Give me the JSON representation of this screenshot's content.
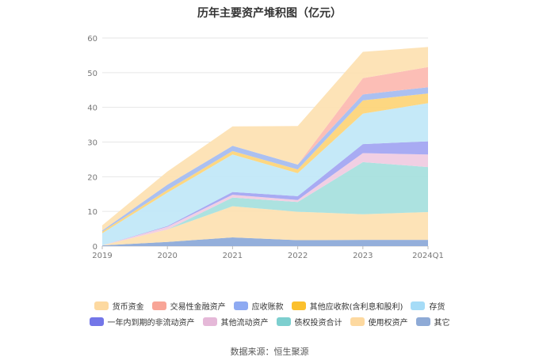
{
  "title": "历年主要资产堆积图（亿元）",
  "source": "数据来源：恒生聚源",
  "chart_data": {
    "type": "area",
    "stacked": true,
    "categories": [
      "2019",
      "2020",
      "2021",
      "2022",
      "2023",
      "2024Q1"
    ],
    "ylim": [
      0,
      60
    ],
    "yticks": [
      0,
      10,
      20,
      30,
      40,
      50,
      60
    ],
    "grid": true,
    "legend_position": "bottom",
    "series": [
      {
        "name": "其它",
        "color": "#8eabd9",
        "values": [
          0.2,
          1.2,
          2.5,
          1.7,
          1.8,
          1.8
        ]
      },
      {
        "name": "使用权资产",
        "color": "#fde2b3",
        "values": [
          0.0,
          3.6,
          9.0,
          8.2,
          7.4,
          8.0
        ]
      },
      {
        "name": "债权投资合计",
        "color": "#a8e0de",
        "values": [
          0.0,
          0.0,
          2.5,
          2.8,
          15.0,
          13.0
        ]
      },
      {
        "name": "其他流动资产",
        "color": "#f0cce2",
        "values": [
          0.0,
          0.8,
          0.8,
          0.6,
          2.6,
          3.6
        ]
      },
      {
        "name": "一年内到期的非流动资产",
        "color": "#a3a6f2",
        "values": [
          0.0,
          0.2,
          0.8,
          1.1,
          2.6,
          3.8
        ]
      },
      {
        "name": "存货",
        "color": "#c2e8f8",
        "values": [
          3.5,
          9.6,
          10.8,
          6.6,
          8.8,
          11.0
        ]
      },
      {
        "name": "其他应收款(含利息和股利)",
        "color": "#fdd57a",
        "values": [
          0.5,
          0.8,
          1.0,
          1.1,
          3.8,
          2.8
        ]
      },
      {
        "name": "应收账款",
        "color": "#a6bdf0",
        "values": [
          0.3,
          1.5,
          1.5,
          1.4,
          1.7,
          1.8
        ]
      },
      {
        "name": "交易性金融资产",
        "color": "#fcbab2",
        "values": [
          0.0,
          0.0,
          0.0,
          0.0,
          4.7,
          5.8
        ]
      },
      {
        "name": "货币资金",
        "color": "#fde2b3",
        "values": [
          1.5,
          3.8,
          5.6,
          11.1,
          7.6,
          5.8
        ]
      }
    ]
  },
  "legend": {
    "row1": [
      {
        "label": "货币资金",
        "color": "#fdd9a0"
      },
      {
        "label": "交易性金融资产",
        "color": "#f8a597"
      },
      {
        "label": "应收账款",
        "color": "#8eaaf2"
      },
      {
        "label": "其他应收款(含利息和股利)",
        "color": "#fbc02d"
      },
      {
        "label": "存货",
        "color": "#a6dcf7"
      }
    ],
    "row2": [
      {
        "label": "一年内到期的非流动资产",
        "color": "#7376e8"
      },
      {
        "label": "其他流动资产",
        "color": "#e5b8d8"
      },
      {
        "label": "债权投资合计",
        "color": "#7dcfcf"
      },
      {
        "label": "使用权资产",
        "color": "#fdd9a0"
      },
      {
        "label": "其它",
        "color": "#8eaad6"
      }
    ]
  }
}
